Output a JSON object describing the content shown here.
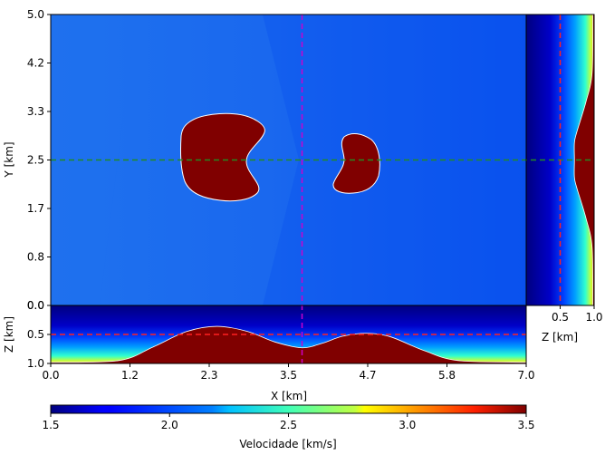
{
  "chart_data": {
    "type": "heatmap",
    "colormap": "jet",
    "colors": {
      "background_top_left": "#1f71ee",
      "background_top_right": "#0a52ee",
      "anomaly": "#800000",
      "x_cut_line": "#cc00cc",
      "y_cut_line": "#228b22",
      "z_cut_line": "#ff2020"
    },
    "main_panel": {
      "ylabel": "Y [km]",
      "xlim": [
        0.0,
        7.0
      ],
      "ylim": [
        0.0,
        5.0
      ],
      "yticks": [
        "0.0",
        "0.8",
        "1.7",
        "2.5",
        "3.3",
        "4.2",
        "5.0"
      ],
      "ytick_values": [
        0.0,
        0.8333,
        1.6667,
        2.5,
        3.3333,
        4.1667,
        5.0
      ],
      "bodies": [
        {
          "shape": "kidney",
          "x_range": [
            1.93,
            3.15
          ],
          "y_range": [
            1.79,
            3.29
          ]
        },
        {
          "shape": "kidney",
          "x_range": [
            4.15,
            4.87
          ],
          "y_range": [
            1.91,
            2.95
          ]
        }
      ]
    },
    "bottom_panel": {
      "ylabel": "Z [km]",
      "xlabel": "X [km]",
      "xticks": [
        "0.0",
        "1.2",
        "2.3",
        "3.5",
        "4.7",
        "5.8",
        "7.0"
      ],
      "xtick_values": [
        0.0,
        1.1667,
        2.3333,
        3.5,
        4.6667,
        5.8333,
        7.0
      ],
      "yticks": [
        "0.0",
        "0.5",
        "1.0"
      ],
      "ytick_values": [
        0.0,
        0.5,
        1.0
      ],
      "interface": {
        "x": [
          0.0,
          1.0,
          1.5,
          2.0,
          2.45,
          2.9,
          3.3,
          3.7,
          4.0,
          4.3,
          4.65,
          5.0,
          5.5,
          6.0,
          7.0
        ],
        "z": [
          0.98,
          0.95,
          0.72,
          0.45,
          0.36,
          0.45,
          0.63,
          0.73,
          0.65,
          0.53,
          0.48,
          0.54,
          0.78,
          0.95,
          0.98
        ]
      }
    },
    "right_panel": {
      "xlabel": "Z [km]",
      "xticks": [
        "0.5",
        "1.0"
      ],
      "xtick_values": [
        0.5,
        1.0
      ],
      "interface": {
        "y": [
          0.0,
          1.0,
          1.5,
          2.0,
          2.2,
          2.5,
          2.8,
          3.0,
          3.5,
          4.0,
          5.0
        ],
        "z": [
          0.98,
          0.97,
          0.88,
          0.75,
          0.71,
          0.71,
          0.71,
          0.75,
          0.88,
          0.97,
          0.98
        ]
      }
    },
    "colorbar": {
      "label": "Velocidade [km/s]",
      "range": [
        1.5,
        3.5
      ],
      "ticks": [
        "1.5",
        "2.0",
        "2.5",
        "3.0",
        "3.5"
      ],
      "tick_values": [
        1.5,
        2.0,
        2.5,
        3.0,
        3.5
      ]
    },
    "cut_lines": {
      "x_cut": 3.7,
      "y_cut": 2.5,
      "z_cut": 0.5
    }
  }
}
